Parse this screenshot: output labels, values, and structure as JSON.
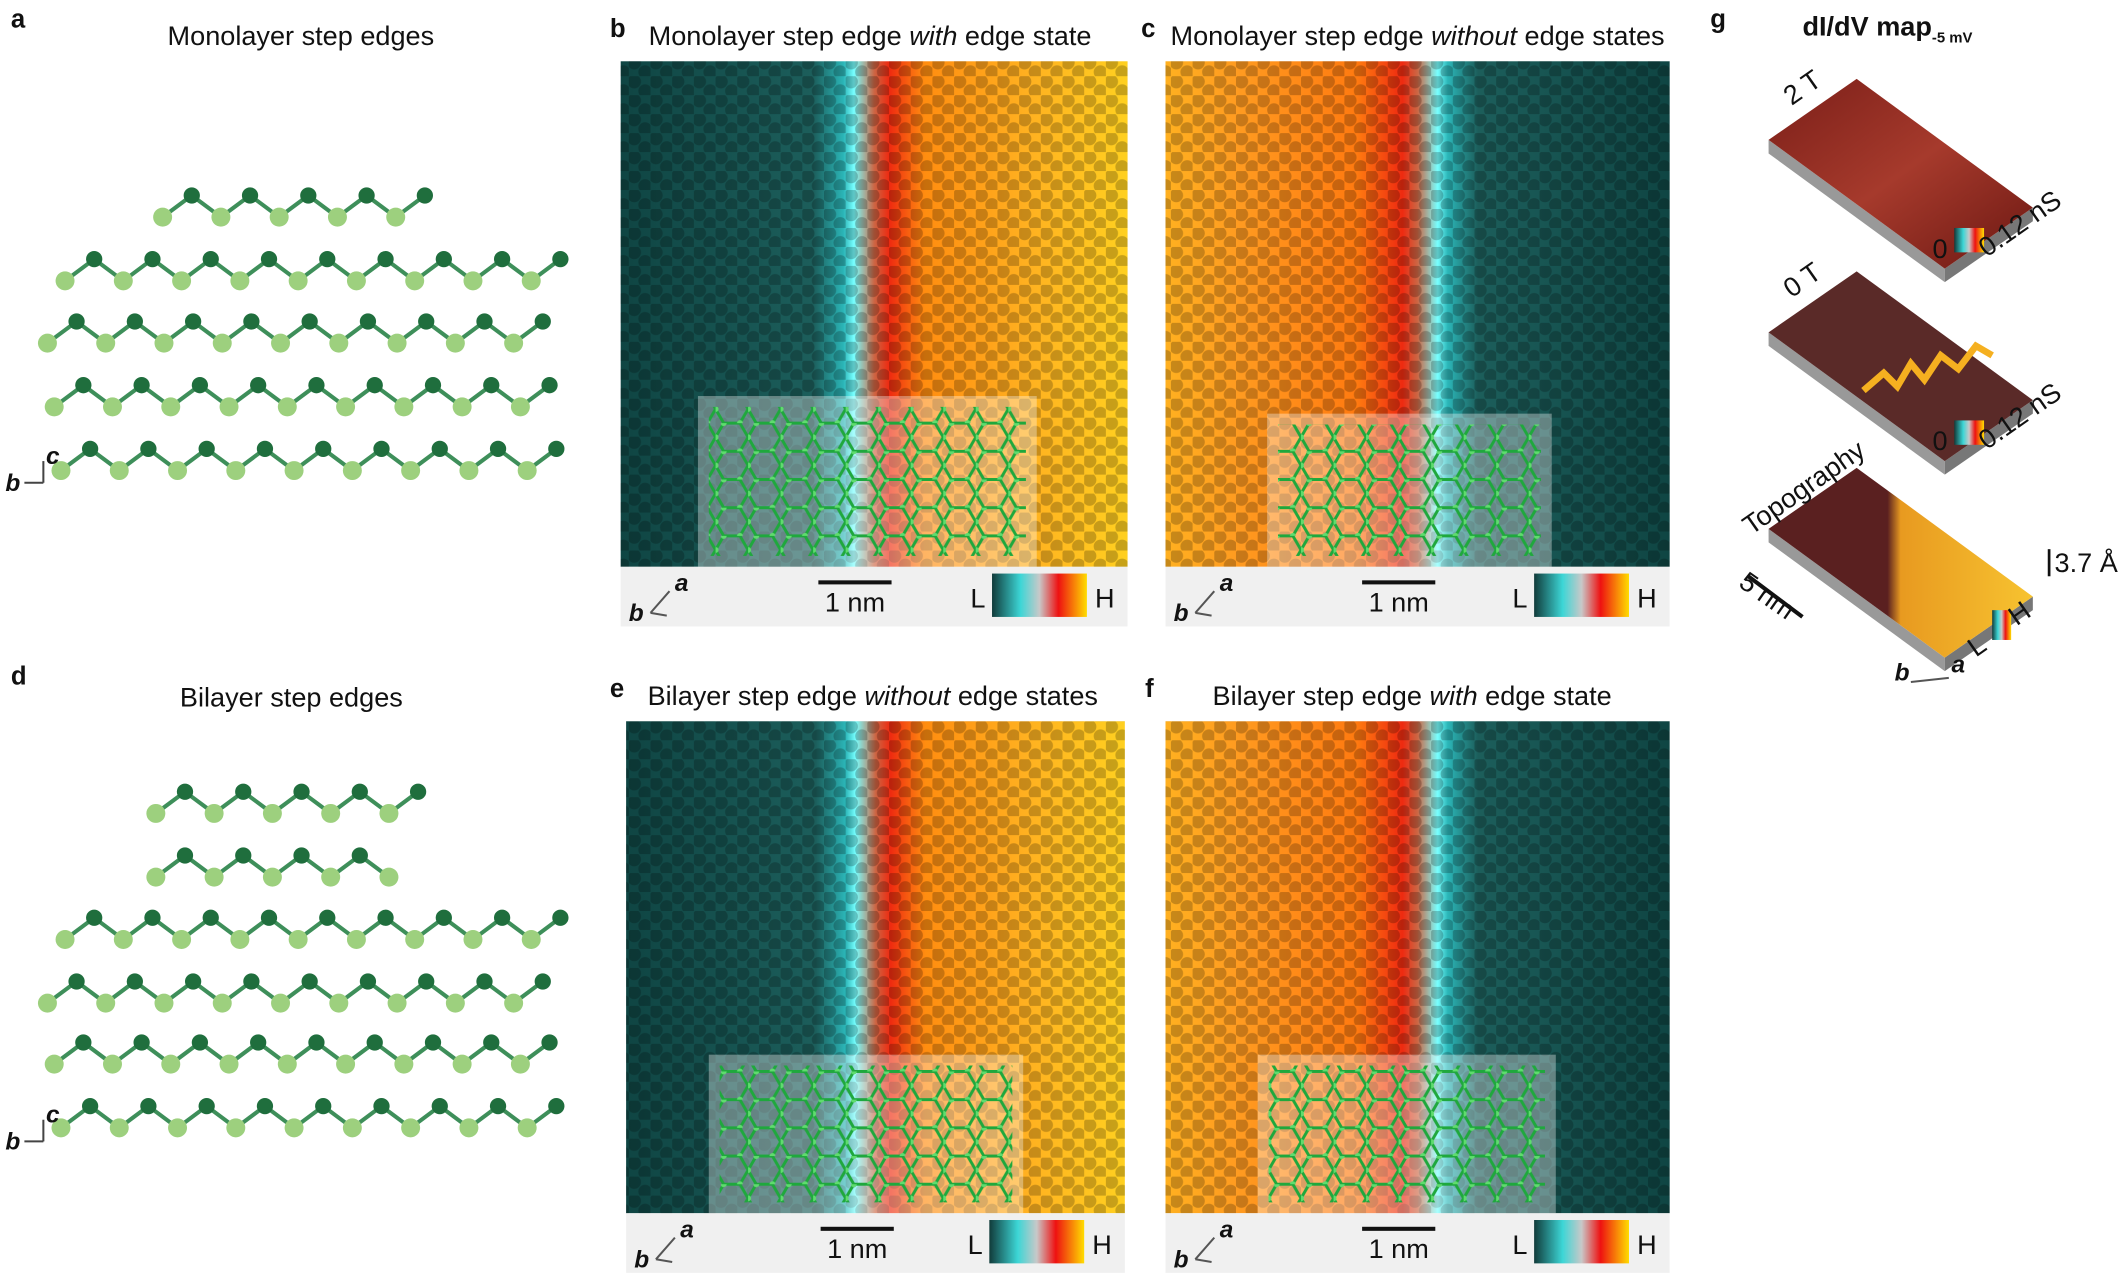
{
  "panels": {
    "a": {
      "letter": "a",
      "title": "Monolayer step edges",
      "axis_b": "b",
      "axis_c": "c"
    },
    "b": {
      "letter": "b",
      "title": {
        "pre": "Monolayer step edge ",
        "em": "with",
        "post": " edge state"
      },
      "axis_b": "b",
      "axis_a": "a",
      "scale_bar": "1 nm",
      "colorbar_low": "L",
      "colorbar_high": "H"
    },
    "c": {
      "letter": "c",
      "title": {
        "pre": "Monolayer step edge ",
        "em": "without",
        "post": " edge states"
      },
      "axis_b": "b",
      "axis_a": "a",
      "scale_bar": "1 nm",
      "colorbar_low": "L",
      "colorbar_high": "H"
    },
    "d": {
      "letter": "d",
      "title": "Bilayer step edges",
      "axis_b": "b",
      "axis_c": "c"
    },
    "e": {
      "letter": "e",
      "title": {
        "pre": "Bilayer step edge ",
        "em": "without",
        "post": " edge states"
      },
      "axis_b": "b",
      "axis_a": "a",
      "scale_bar": "1 nm",
      "colorbar_low": "L",
      "colorbar_high": "H"
    },
    "f": {
      "letter": "f",
      "title": {
        "pre": "Bilayer step edge ",
        "em": "with",
        "post": " edge state"
      },
      "axis_b": "b",
      "axis_a": "a",
      "scale_bar": "1 nm",
      "colorbar_low": "L",
      "colorbar_high": "H"
    },
    "g": {
      "letter": "g",
      "title": "dI/dV map",
      "title_sub": "-5 mV",
      "maps": [
        {
          "field": "2 T",
          "colorbar_low": "0",
          "colorbar_high": "0.12 nS"
        },
        {
          "field": "0 T",
          "colorbar_low": "0",
          "colorbar_high": "0.12 nS"
        }
      ],
      "topography": {
        "label": "Topography",
        "scale_bar": "5 nm",
        "height": "3.7 Å",
        "colorbar_low": "L",
        "colorbar_high": "H",
        "axis_b": "b",
        "axis_a": "a"
      }
    }
  }
}
